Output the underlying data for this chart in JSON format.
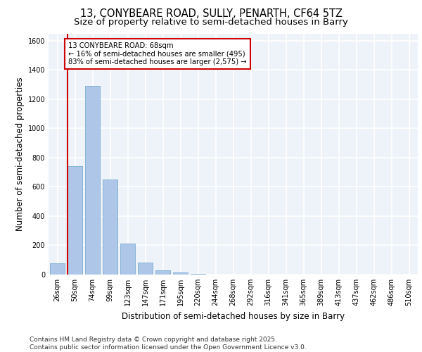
{
  "title_line1": "13, CONYBEARE ROAD, SULLY, PENARTH, CF64 5TZ",
  "title_line2": "Size of property relative to semi-detached houses in Barry",
  "xlabel": "Distribution of semi-detached houses by size in Barry",
  "ylabel": "Number of semi-detached properties",
  "categories": [
    "26sqm",
    "50sqm",
    "74sqm",
    "99sqm",
    "123sqm",
    "147sqm",
    "171sqm",
    "195sqm",
    "220sqm",
    "244sqm",
    "268sqm",
    "292sqm",
    "316sqm",
    "341sqm",
    "365sqm",
    "389sqm",
    "413sqm",
    "437sqm",
    "462sqm",
    "486sqm",
    "510sqm"
  ],
  "values": [
    75,
    740,
    1290,
    650,
    210,
    80,
    30,
    15,
    5,
    0,
    0,
    0,
    0,
    0,
    0,
    0,
    0,
    0,
    0,
    0,
    0
  ],
  "bar_color": "#aec6e8",
  "bar_edge_color": "#7aadd0",
  "vline_color": "#cc0000",
  "annotation_text": "13 CONYBEARE ROAD: 68sqm\n← 16% of semi-detached houses are smaller (495)\n83% of semi-detached houses are larger (2,575) →",
  "annotation_box_color": "#ffffff",
  "annotation_box_edge": "#cc0000",
  "footer_text": "Contains HM Land Registry data © Crown copyright and database right 2025.\nContains public sector information licensed under the Open Government Licence v3.0.",
  "ylim": [
    0,
    1650
  ],
  "yticks": [
    0,
    200,
    400,
    600,
    800,
    1000,
    1200,
    1400,
    1600
  ],
  "background_color": "#eef2f9",
  "grid_color": "#ffffff",
  "title_fontsize": 10.5,
  "subtitle_fontsize": 9.5,
  "axis_label_fontsize": 8.5,
  "tick_fontsize": 7,
  "footer_fontsize": 6.5
}
